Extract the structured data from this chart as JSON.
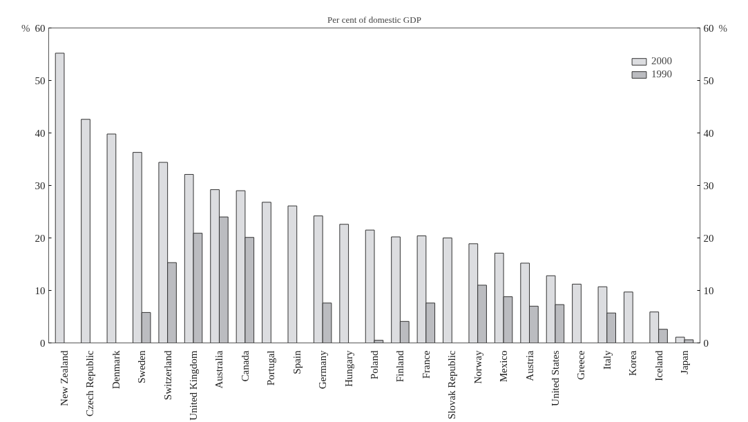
{
  "chart_data": {
    "type": "bar",
    "title": "Per cent of domestic GDP",
    "ylabel": "%",
    "y2label": "%",
    "categories": [
      "New Zealand",
      "Czech Republic",
      "Denmark",
      "Sweden",
      "Switzerland",
      "United Kingdom",
      "Australia",
      "Canada",
      "Portugal",
      "Spain",
      "Germany",
      "Hungary",
      "Poland",
      "Finland",
      "France",
      "Slovak Republic",
      "Norway",
      "Mexico",
      "Austria",
      "United States",
      "Greece",
      "Italy",
      "Korea",
      "Iceland",
      "Japan"
    ],
    "series": [
      {
        "name": "2000",
        "color": "#dcdde0",
        "values": [
          55.2,
          42.6,
          39.8,
          36.3,
          34.4,
          32.1,
          29.2,
          29.0,
          26.8,
          26.1,
          24.2,
          22.6,
          21.5,
          20.2,
          20.4,
          20.0,
          18.9,
          17.1,
          15.2,
          12.8,
          11.2,
          10.7,
          9.7,
          5.9,
          1.1
        ]
      },
      {
        "name": "1990",
        "color": "#bbbcc0",
        "values": [
          null,
          null,
          null,
          5.8,
          15.3,
          20.9,
          24.0,
          20.1,
          null,
          null,
          7.6,
          null,
          0.5,
          4.1,
          7.6,
          null,
          11.0,
          8.8,
          7.0,
          7.3,
          null,
          5.7,
          null,
          2.6,
          0.6
        ]
      }
    ],
    "ylim": [
      0,
      60
    ],
    "yticks": [
      0,
      10,
      20,
      30,
      40,
      50,
      60
    ],
    "y2lim": [
      0,
      60
    ],
    "y2ticks": [
      0,
      10,
      20,
      30,
      40,
      50,
      60
    ],
    "legend": "top right",
    "grid": false
  }
}
